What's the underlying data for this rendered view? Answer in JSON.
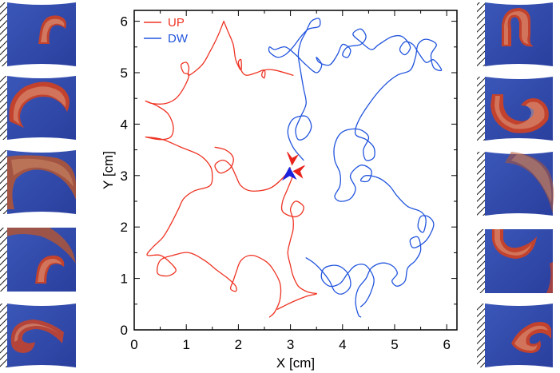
{
  "chart_data": {
    "type": "line",
    "xlabel": "X [cm]",
    "ylabel": "Y [cm]",
    "xlim": [
      0,
      6.2
    ],
    "ylim": [
      0,
      6.4
    ],
    "xticks": [
      "0",
      "1",
      "2",
      "3",
      "4",
      "5",
      "6"
    ],
    "yticks": [
      "0",
      "1",
      "2",
      "3",
      "4",
      "5",
      "6"
    ],
    "grid": false,
    "legend_position": "top-left",
    "colors": {
      "up": "#ee3322",
      "dw": "#2255dd",
      "arrow_up": "#e8231b",
      "arrow_dw": "#1a22dd"
    },
    "series": [
      {
        "name": "UP",
        "trajectories": [
          [
            [
              1.72,
              6.0
            ],
            [
              1.6,
              5.7
            ],
            [
              1.45,
              5.4
            ],
            [
              1.3,
              5.15
            ],
            [
              1.05,
              4.95
            ],
            [
              1.05,
              5.1
            ],
            [
              1.0,
              5.2
            ],
            [
              0.9,
              5.15
            ],
            [
              0.95,
              5.0
            ],
            [
              1.05,
              4.95
            ],
            [
              0.95,
              4.7
            ],
            [
              0.8,
              4.5
            ],
            [
              0.6,
              4.4
            ],
            [
              0.35,
              4.4
            ],
            [
              0.22,
              4.45
            ],
            [
              0.45,
              4.35
            ],
            [
              0.65,
              4.2
            ],
            [
              0.75,
              3.95
            ],
            [
              0.7,
              3.75
            ],
            [
              0.5,
              3.7
            ],
            [
              0.22,
              3.75
            ],
            [
              0.55,
              3.7
            ],
            [
              0.9,
              3.55
            ],
            [
              1.25,
              3.4
            ],
            [
              1.45,
              3.2
            ],
            [
              1.5,
              3.0
            ],
            [
              1.45,
              2.8
            ],
            [
              1.15,
              2.7
            ],
            [
              0.95,
              2.55
            ],
            [
              0.85,
              2.35
            ],
            [
              0.7,
              2.05
            ],
            [
              0.55,
              1.8
            ],
            [
              0.35,
              1.6
            ],
            [
              0.25,
              1.45
            ],
            [
              0.5,
              1.45
            ],
            [
              0.7,
              1.3
            ],
            [
              0.8,
              1.15
            ],
            [
              0.65,
              1.05
            ],
            [
              0.45,
              1.1
            ],
            [
              0.5,
              1.35
            ],
            [
              0.75,
              1.45
            ],
            [
              1.05,
              1.5
            ],
            [
              1.35,
              1.35
            ],
            [
              1.6,
              1.15
            ],
            [
              1.8,
              1.0
            ],
            [
              1.95,
              0.85
            ],
            [
              1.95,
              0.75
            ],
            [
              1.85,
              0.8
            ],
            [
              1.9,
              0.95
            ],
            [
              1.95,
              1.1
            ],
            [
              2.05,
              1.35
            ],
            [
              2.25,
              1.45
            ],
            [
              2.5,
              1.35
            ],
            [
              2.65,
              1.2
            ],
            [
              2.8,
              0.9
            ],
            [
              2.8,
              0.6
            ],
            [
              2.7,
              0.35
            ],
            [
              2.6,
              0.25
            ]
          ],
          [
            [
              1.72,
              6.0
            ],
            [
              1.8,
              5.8
            ],
            [
              1.9,
              5.55
            ],
            [
              1.95,
              5.25
            ],
            [
              2.05,
              5.05
            ],
            [
              2.05,
              5.25
            ],
            [
              2.0,
              5.2
            ],
            [
              2.05,
              5.05
            ],
            [
              2.15,
              4.95
            ],
            [
              2.35,
              5.0
            ],
            [
              2.5,
              5.05
            ],
            [
              2.5,
              4.9
            ],
            [
              2.45,
              4.95
            ],
            [
              2.5,
              5.05
            ],
            [
              2.7,
              5.05
            ],
            [
              3.05,
              4.95
            ]
          ],
          [
            [
              1.55,
              3.55
            ],
            [
              1.75,
              3.5
            ],
            [
              1.9,
              3.35
            ],
            [
              1.85,
              3.15
            ],
            [
              1.65,
              3.05
            ],
            [
              1.55,
              3.2
            ],
            [
              1.7,
              3.3
            ],
            [
              1.85,
              3.2
            ],
            [
              1.95,
              3.0
            ],
            [
              2.05,
              2.8
            ],
            [
              2.25,
              2.7
            ],
            [
              2.6,
              2.75
            ],
            [
              2.85,
              2.95
            ],
            [
              3.0,
              3.15
            ]
          ],
          [
            [
              3.05,
              3.0
            ],
            [
              2.95,
              2.75
            ],
            [
              2.85,
              2.5
            ],
            [
              2.85,
              2.3
            ],
            [
              3.05,
              2.2
            ],
            [
              3.2,
              2.25
            ],
            [
              3.25,
              2.4
            ],
            [
              3.1,
              2.5
            ],
            [
              3.0,
              2.35
            ],
            [
              3.05,
              2.15
            ],
            [
              3.05,
              1.95
            ],
            [
              3.0,
              1.75
            ],
            [
              2.95,
              1.5
            ],
            [
              3.0,
              1.25
            ],
            [
              3.05,
              1.05
            ],
            [
              3.15,
              0.85
            ],
            [
              3.3,
              0.75
            ],
            [
              3.4,
              0.72
            ],
            [
              3.5,
              0.7
            ],
            [
              3.3,
              0.65
            ],
            [
              3.05,
              0.55
            ],
            [
              2.85,
              0.45
            ],
            [
              2.75,
              0.4
            ]
          ]
        ]
      },
      {
        "name": "DW",
        "trajectories": [
          [
            [
              3.25,
              3.3
            ],
            [
              3.05,
              3.55
            ],
            [
              2.95,
              3.85
            ],
            [
              3.05,
              4.1
            ],
            [
              3.3,
              4.15
            ],
            [
              3.4,
              3.95
            ],
            [
              3.3,
              3.75
            ],
            [
              3.15,
              3.7
            ],
            [
              3.1,
              3.9
            ],
            [
              3.2,
              4.15
            ],
            [
              3.3,
              4.4
            ],
            [
              3.25,
              4.7
            ],
            [
              3.2,
              5.0
            ],
            [
              3.15,
              5.35
            ],
            [
              3.2,
              5.6
            ],
            [
              3.3,
              5.8
            ],
            [
              3.4,
              6.0
            ],
            [
              3.55,
              6.05
            ],
            [
              3.55,
              5.9
            ],
            [
              3.35,
              5.85
            ],
            [
              3.2,
              5.7
            ],
            [
              3.05,
              5.5
            ],
            [
              2.9,
              5.35
            ],
            [
              2.75,
              5.3
            ],
            [
              2.6,
              5.4
            ],
            [
              2.6,
              5.5
            ],
            [
              2.7,
              5.45
            ],
            [
              2.9,
              5.5
            ],
            [
              3.1,
              5.35
            ],
            [
              3.3,
              5.15
            ],
            [
              3.5,
              5.0
            ],
            [
              3.6,
              5.15
            ],
            [
              3.5,
              5.3
            ],
            [
              3.55,
              5.2
            ],
            [
              3.75,
              5.15
            ],
            [
              3.9,
              5.35
            ],
            [
              4.0,
              5.55
            ],
            [
              4.15,
              5.45
            ],
            [
              4.1,
              5.3
            ],
            [
              4.0,
              5.35
            ],
            [
              4.1,
              5.5
            ],
            [
              4.35,
              5.55
            ],
            [
              4.45,
              5.7
            ],
            [
              4.35,
              5.85
            ],
            [
              4.2,
              5.75
            ],
            [
              4.35,
              5.6
            ],
            [
              4.55,
              5.45
            ],
            [
              4.7,
              5.55
            ],
            [
              4.95,
              5.7
            ],
            [
              5.15,
              5.7
            ],
            [
              5.3,
              5.5
            ],
            [
              5.2,
              5.35
            ],
            [
              5.1,
              5.45
            ],
            [
              5.2,
              5.6
            ],
            [
              5.35,
              5.55
            ],
            [
              5.45,
              5.4
            ],
            [
              5.6,
              5.2
            ],
            [
              5.75,
              5.25
            ],
            [
              5.9,
              5.05
            ],
            [
              5.75,
              5.1
            ],
            [
              5.7,
              5.35
            ],
            [
              5.8,
              5.55
            ],
            [
              5.6,
              5.65
            ],
            [
              5.45,
              5.55
            ],
            [
              5.4,
              5.3
            ],
            [
              5.3,
              5.05
            ],
            [
              5.05,
              4.95
            ],
            [
              4.8,
              4.75
            ],
            [
              4.55,
              4.45
            ],
            [
              4.3,
              4.05
            ],
            [
              4.25,
              3.8
            ],
            [
              4.45,
              3.7
            ],
            [
              4.6,
              3.55
            ],
            [
              4.6,
              3.35
            ],
            [
              4.45,
              3.3
            ],
            [
              4.4,
              3.5
            ],
            [
              4.5,
              3.75
            ],
            [
              4.3,
              3.9
            ],
            [
              4.0,
              3.85
            ],
            [
              3.85,
              3.6
            ],
            [
              3.85,
              3.3
            ],
            [
              3.95,
              3.05
            ],
            [
              3.95,
              2.8
            ],
            [
              3.85,
              2.6
            ],
            [
              3.95,
              2.5
            ],
            [
              4.15,
              2.55
            ],
            [
              4.25,
              2.75
            ],
            [
              4.15,
              3.0
            ],
            [
              4.35,
              3.2
            ],
            [
              4.55,
              3.1
            ],
            [
              4.5,
              2.9
            ],
            [
              4.35,
              2.9
            ],
            [
              4.45,
              3.0
            ],
            [
              4.7,
              2.95
            ],
            [
              4.9,
              2.8
            ],
            [
              5.05,
              2.6
            ],
            [
              5.25,
              2.4
            ],
            [
              5.5,
              2.3
            ],
            [
              5.6,
              2.15
            ],
            [
              5.55,
              1.9
            ],
            [
              5.45,
              2.0
            ],
            [
              5.5,
              2.2
            ],
            [
              5.65,
              2.2
            ],
            [
              5.75,
              2.05
            ],
            [
              5.65,
              1.8
            ],
            [
              5.5,
              1.65
            ],
            [
              5.35,
              1.6
            ],
            [
              5.3,
              1.75
            ],
            [
              5.45,
              1.8
            ],
            [
              5.5,
              1.55
            ],
            [
              5.4,
              1.35
            ],
            [
              5.25,
              1.2
            ],
            [
              5.2,
              0.95
            ],
            [
              5.05,
              0.85
            ],
            [
              4.95,
              0.95
            ],
            [
              5.05,
              1.1
            ],
            [
              4.95,
              1.25
            ],
            [
              4.75,
              1.3
            ],
            [
              4.55,
              1.2
            ],
            [
              4.45,
              1.0
            ],
            [
              4.3,
              0.8
            ],
            [
              4.25,
              0.55
            ],
            [
              4.3,
              0.3
            ],
            [
              4.35,
              0.25
            ]
          ],
          [
            [
              3.3,
              1.4
            ],
            [
              3.45,
              1.3
            ],
            [
              3.6,
              1.15
            ],
            [
              3.75,
              0.95
            ],
            [
              3.85,
              0.75
            ],
            [
              4.0,
              0.7
            ],
            [
              4.15,
              0.85
            ],
            [
              4.1,
              1.1
            ],
            [
              3.9,
              1.25
            ],
            [
              3.65,
              1.2
            ],
            [
              3.6,
              1.0
            ],
            [
              3.75,
              0.85
            ],
            [
              3.95,
              0.9
            ],
            [
              4.1,
              1.1
            ],
            [
              4.25,
              1.25
            ],
            [
              4.45,
              1.25
            ],
            [
              4.6,
              1.0
            ],
            [
              4.55,
              0.75
            ],
            [
              4.45,
              0.55
            ],
            [
              4.35,
              0.45
            ]
          ]
        ]
      }
    ],
    "arrows": [
      {
        "series": "UP",
        "x": 3.0,
        "y": 3.3
      },
      {
        "series": "UP",
        "x": 3.15,
        "y": 3.1
      },
      {
        "series": "DW",
        "x": 2.95,
        "y": 3.0
      }
    ]
  }
}
